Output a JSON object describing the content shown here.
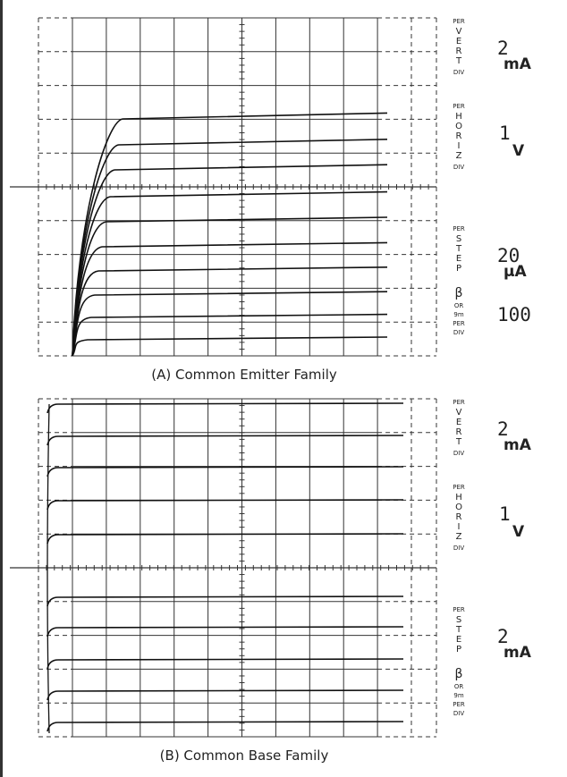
{
  "panels": [
    {
      "readouts": [
        {
          "top": "PER",
          "word": "VERT",
          "bottom": "DIV",
          "value": [
            "2",
            "mA"
          ]
        },
        {
          "top": "PER",
          "word": "HORIZ",
          "bottom": "DIV",
          "value": [
            "1",
            "V"
          ]
        },
        {
          "top": "PER",
          "word": "STEP",
          "value": [
            "20",
            "µA"
          ]
        },
        {
          "lines": [
            "β",
            "OR",
            "9m",
            "PER",
            "DIV"
          ],
          "value": [
            "100"
          ]
        }
      ],
      "caption": "(A)  Common Emitter Family"
    },
    {
      "readouts": [
        {
          "top": "PER",
          "word": "VERT",
          "bottom": "DIV",
          "value": [
            "2",
            "mA"
          ]
        },
        {
          "top": "PER",
          "word": "HORIZ",
          "bottom": "DIV",
          "value": [
            "1",
            "V"
          ]
        },
        {
          "top": "PER",
          "word": "STEP",
          "value": [
            "2",
            "mA"
          ]
        },
        {
          "lines": [
            "β",
            "OR",
            "9m",
            "PER",
            "DIV"
          ]
        }
      ],
      "caption": "(B)  Common Base  Family"
    }
  ]
}
